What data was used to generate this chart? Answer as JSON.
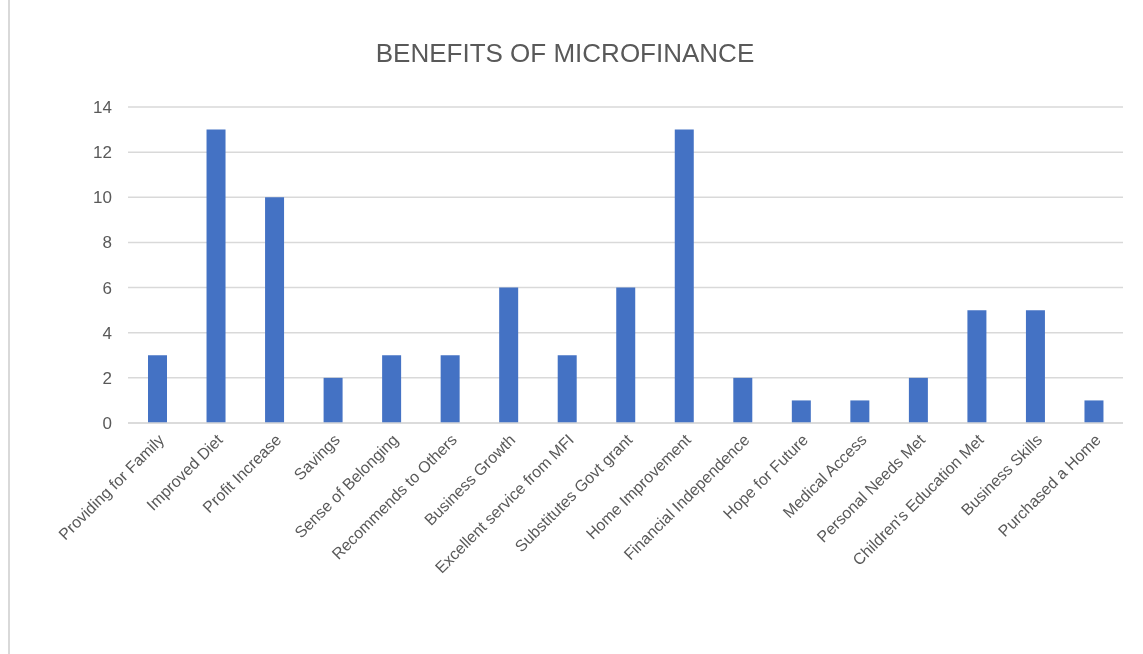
{
  "chart_data": {
    "type": "bar",
    "title": "BENEFITS OF MICROFINANCE",
    "categories": [
      "Providing for Family",
      "Improved Diet",
      "Profit Increase",
      "Savings",
      "Sense of Belonging",
      "Recommends to Others",
      "Business Growth",
      "Excellent service from MFI",
      "Substitutes Govt grant",
      "Home Improvement",
      "Financial Independence",
      "Hope for Future",
      "Medical Access",
      "Personal Needs Met",
      "Children's Education Met",
      "Business Skills",
      "Purchased a Home"
    ],
    "values": [
      3,
      13,
      10,
      2,
      3,
      3,
      6,
      3,
      6,
      13,
      2,
      1,
      1,
      2,
      5,
      5,
      1
    ],
    "color": "#4472c4",
    "ylim": [
      0,
      14
    ],
    "yticks": [
      0,
      2,
      4,
      6,
      8,
      10,
      12,
      14
    ],
    "grid": "y"
  }
}
